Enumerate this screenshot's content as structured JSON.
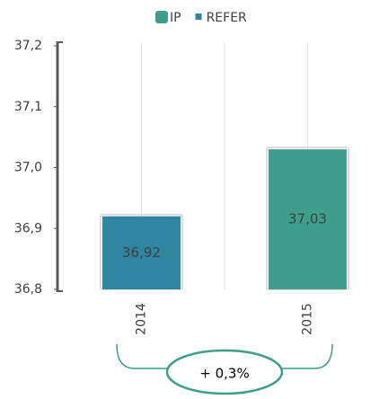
{
  "chart_data": {
    "type": "bar",
    "categories": [
      "2014",
      "2015"
    ],
    "series": [
      {
        "name": "IP",
        "color": "#3d9e8c",
        "values": [
          null,
          37.03
        ],
        "value_labels": [
          null,
          "37,03"
        ]
      },
      {
        "name": "REFER",
        "color": "#2f86a0",
        "values": [
          36.92,
          null
        ],
        "value_labels": [
          "36,92",
          null
        ]
      }
    ],
    "ylim": [
      36.8,
      37.2
    ],
    "yticks": [
      {
        "value": 36.8,
        "label": "36,8"
      },
      {
        "value": 36.9,
        "label": "36,9"
      },
      {
        "value": 37.0,
        "label": "37,0"
      },
      {
        "value": 37.1,
        "label": "37,1"
      },
      {
        "value": 37.2,
        "label": "37,2"
      }
    ],
    "annotation": "+ 0,3%"
  }
}
